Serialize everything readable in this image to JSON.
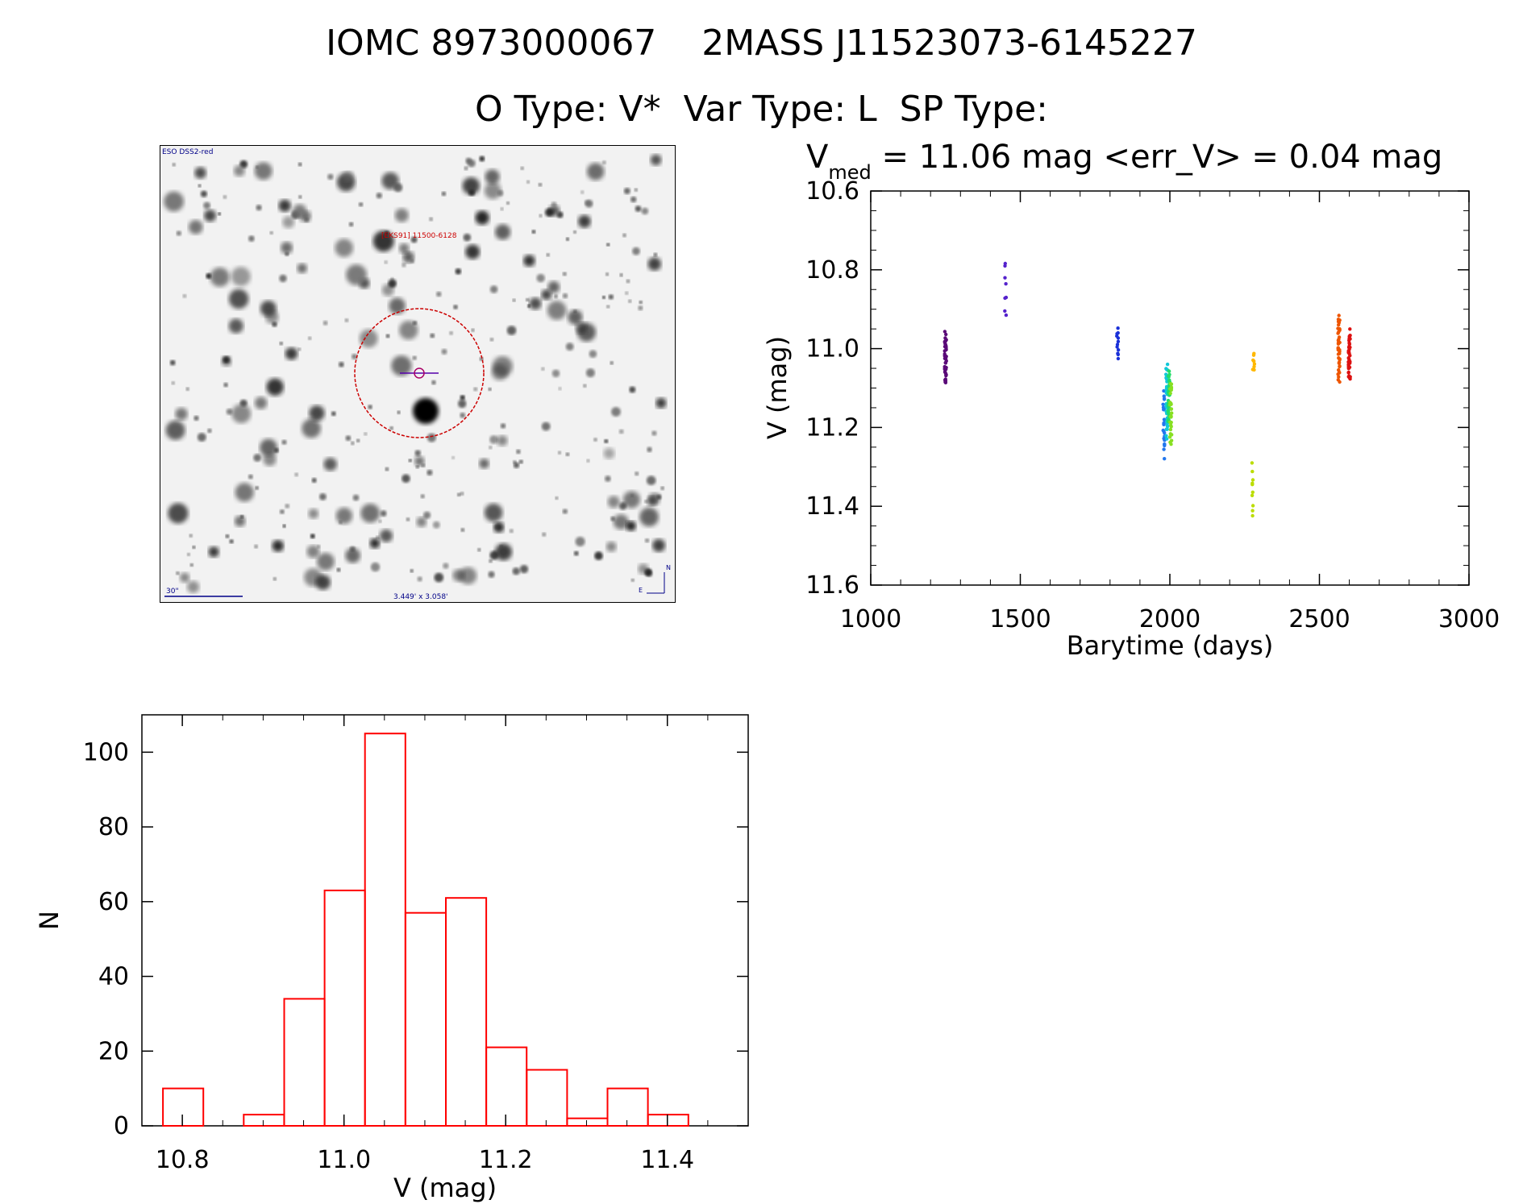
{
  "header": {
    "title_line1": "IOMC 8973000067    2MASS J11523073-6145227",
    "title_line2": "O Type: V*  Var Type: L  SP Type:"
  },
  "image_panel": {
    "survey_label": "ESO DSS2-red",
    "object_label": "[EKS91] 11500-6128",
    "scale_label": "30\"",
    "fov_label": "3.449' x 3.058'",
    "north_label": "N",
    "east_label": "E"
  },
  "chart_data": [
    {
      "type": "scatter",
      "title_main": "V",
      "title_sub": "med",
      "title_rest": " = 11.06 mag <err_V> = 0.04 mag",
      "xlabel": "Barytime (days)",
      "ylabel": "V (mag)",
      "xlim": [
        1000,
        3000
      ],
      "ylim": [
        11.6,
        10.6
      ],
      "y_inverted": true,
      "xticks": [
        1000,
        1500,
        2000,
        2500,
        3000
      ],
      "xtick_labels": [
        "1000",
        "1500",
        "2000",
        "2500",
        "3000"
      ],
      "yticks": [
        10.6,
        10.8,
        11.0,
        11.2,
        11.4,
        11.6
      ],
      "ytick_labels": [
        "10.6",
        "10.8",
        "11.0",
        "11.2",
        "11.4",
        "11.6"
      ],
      "groups": [
        {
          "x": 1250,
          "ymin": 10.95,
          "ymax": 11.11,
          "n": 40,
          "color": "#5a0a78"
        },
        {
          "x": 1450,
          "ymin": 10.77,
          "ymax": 10.93,
          "n": 8,
          "color": "#5522cc"
        },
        {
          "x": 1825,
          "ymin": 10.94,
          "ymax": 11.03,
          "n": 12,
          "color": "#1a30d8"
        },
        {
          "x": 1980,
          "ymin": 11.1,
          "ymax": 11.28,
          "n": 25,
          "color": "#2277ee"
        },
        {
          "x": 1990,
          "ymin": 11.03,
          "ymax": 11.24,
          "n": 40,
          "color": "#11c8d8"
        },
        {
          "x": 1997,
          "ymin": 11.05,
          "ymax": 11.2,
          "n": 40,
          "color": "#22dd66"
        },
        {
          "x": 2003,
          "ymin": 11.07,
          "ymax": 11.26,
          "n": 30,
          "color": "#88e022"
        },
        {
          "x": 2275,
          "ymin": 11.29,
          "ymax": 11.43,
          "n": 10,
          "color": "#bbdd00"
        },
        {
          "x": 2280,
          "ymin": 11.01,
          "ymax": 11.06,
          "n": 8,
          "color": "#ffb800"
        },
        {
          "x": 2565,
          "ymin": 10.91,
          "ymax": 11.09,
          "n": 40,
          "color": "#ee5500"
        },
        {
          "x": 2600,
          "ymin": 10.95,
          "ymax": 11.09,
          "n": 40,
          "color": "#dd1111"
        }
      ]
    },
    {
      "type": "bar",
      "subtype": "histogram",
      "xlabel": "V (mag)",
      "ylabel": "N",
      "xlim": [
        10.75,
        11.5
      ],
      "ylim": [
        0,
        110
      ],
      "xticks": [
        10.8,
        11.0,
        11.2,
        11.4
      ],
      "xtick_labels": [
        "10.8",
        "11.0",
        "11.2",
        "11.4"
      ],
      "yticks": [
        0,
        20,
        40,
        60,
        80,
        100
      ],
      "ytick_labels": [
        "0",
        "20",
        "40",
        "60",
        "80",
        "100"
      ],
      "bin_edges": [
        10.776,
        10.826,
        10.876,
        10.926,
        10.976,
        11.026,
        11.076,
        11.126,
        11.176,
        11.226,
        11.276,
        11.326,
        11.376,
        11.426
      ],
      "counts": [
        10,
        0,
        3,
        34,
        63,
        105,
        57,
        61,
        21,
        15,
        2,
        10,
        3
      ],
      "color": "#ff0000"
    }
  ]
}
